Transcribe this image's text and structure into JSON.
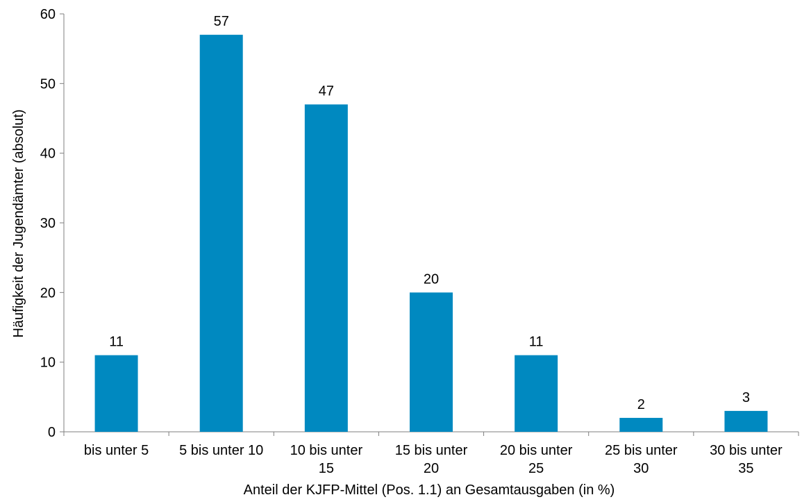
{
  "chart_data": {
    "type": "bar",
    "title": "",
    "xlabel": "Anteil der KJFP-Mittel (Pos. 1.1) an Gesamtausgaben (in %)",
    "ylabel": "Häufigkeit der Jugendämter (absolut)",
    "categories": [
      [
        "bis unter 5"
      ],
      [
        "5 bis unter 10"
      ],
      [
        "10 bis unter",
        "15"
      ],
      [
        "15 bis unter",
        "20"
      ],
      [
        "20 bis unter",
        "25"
      ],
      [
        "25 bis unter",
        "30"
      ],
      [
        "30 bis unter",
        "35"
      ]
    ],
    "values": [
      11,
      57,
      47,
      20,
      11,
      2,
      3
    ],
    "ylim": [
      0,
      60
    ],
    "yticks": [
      0,
      10,
      20,
      30,
      40,
      50,
      60
    ],
    "grid": false,
    "legend": "none",
    "data_labels": true,
    "bar_color": "#0089C0"
  }
}
